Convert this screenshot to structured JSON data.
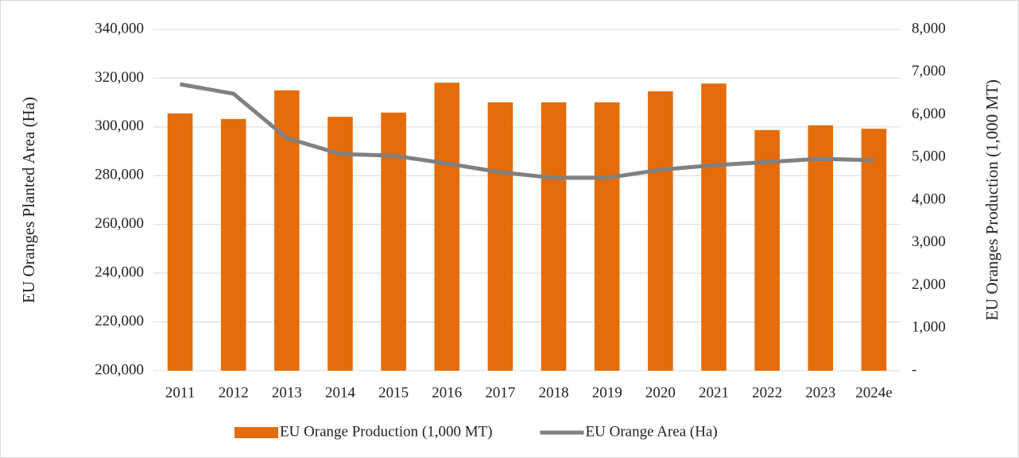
{
  "chart_data": {
    "type": "bar_line",
    "categories": [
      "2011",
      "2012",
      "2013",
      "2014",
      "2015",
      "2016",
      "2017",
      "2018",
      "2019",
      "2020",
      "2021",
      "2022",
      "2023",
      "2024e"
    ],
    "ylabel": "EU Oranges Planted Area (Ha)",
    "y2label": "EU Oranges Production (1,000 MT)",
    "ylim": [
      200000,
      340000
    ],
    "yticks": [
      {
        "value": 200000,
        "label": "200,000"
      },
      {
        "value": 220000,
        "label": "220,000"
      },
      {
        "value": 240000,
        "label": "240,000"
      },
      {
        "value": 260000,
        "label": "260,000"
      },
      {
        "value": 280000,
        "label": "280,000"
      },
      {
        "value": 300000,
        "label": "300,000"
      },
      {
        "value": 320000,
        "label": "320,000"
      },
      {
        "value": 340000,
        "label": "340,000"
      }
    ],
    "y2lim": [
      0,
      8000
    ],
    "y2ticks": [
      {
        "value": 0,
        "label": "-"
      },
      {
        "value": 1000,
        "label": "1,000"
      },
      {
        "value": 2000,
        "label": "2,000"
      },
      {
        "value": 3000,
        "label": "3,000"
      },
      {
        "value": 4000,
        "label": "4,000"
      },
      {
        "value": 5000,
        "label": "5,000"
      },
      {
        "value": 6000,
        "label": "6,000"
      },
      {
        "value": 7000,
        "label": "7,000"
      },
      {
        "value": 8000,
        "label": "8,000"
      }
    ],
    "grid": true,
    "legend": "bottom",
    "series": [
      {
        "name": "EU Orange Production (1,000 MT)",
        "type": "bar",
        "axis": "y2",
        "color": "#e46c0a",
        "values": [
          6030,
          5900,
          6570,
          5950,
          6050,
          6750,
          6290,
          6290,
          6290,
          6550,
          6730,
          5640,
          5750,
          5670
        ]
      },
      {
        "name": "EU Orange Area (Ha)",
        "type": "line",
        "axis": "y",
        "color": "#808080",
        "values": [
          317500,
          313600,
          295400,
          288900,
          288200,
          285000,
          281400,
          279100,
          279100,
          282400,
          284300,
          285600,
          286900,
          286300
        ]
      }
    ]
  }
}
